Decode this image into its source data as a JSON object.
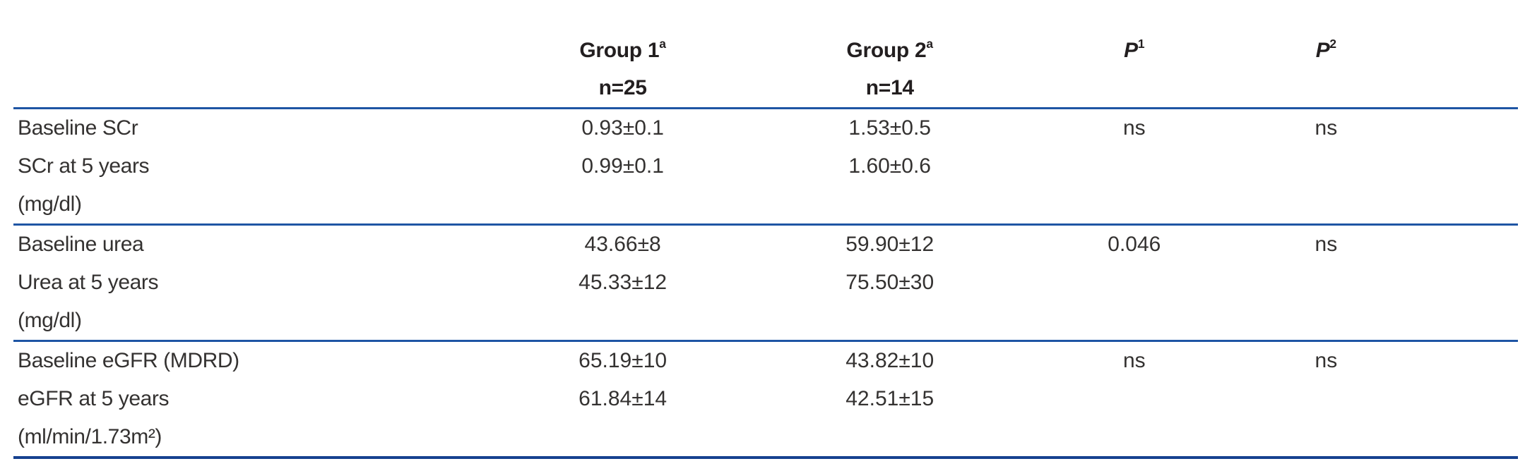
{
  "table": {
    "header": {
      "group1": {
        "title": "Group 1",
        "sup": "a",
        "subtitle": "n=25"
      },
      "group2": {
        "title": "Group 2",
        "sup": "a",
        "subtitle": "n=14"
      },
      "p1": {
        "title": "P",
        "sup": "1"
      },
      "p2": {
        "title": "P",
        "sup": "2"
      }
    },
    "sections": [
      {
        "rows": [
          {
            "label": "Baseline SCr",
            "group1": "0.93±0.1",
            "group2": "1.53±0.5",
            "p1": "ns",
            "p2": "ns"
          },
          {
            "label": "SCr at 5 years",
            "group1": "0.99±0.1",
            "group2": "1.60±0.6",
            "p1": "",
            "p2": ""
          },
          {
            "label": "(mg/dl)",
            "group1": "",
            "group2": "",
            "p1": "",
            "p2": ""
          }
        ]
      },
      {
        "rows": [
          {
            "label": "Baseline urea",
            "group1": "43.66±8",
            "group2": "59.90±12",
            "p1": "0.046",
            "p2": "ns"
          },
          {
            "label": "Urea at 5 years",
            "group1": "45.33±12",
            "group2": "75.50±30",
            "p1": "",
            "p2": ""
          },
          {
            "label": "(mg/dl)",
            "group1": "",
            "group2": "",
            "p1": "",
            "p2": ""
          }
        ]
      },
      {
        "rows": [
          {
            "label": "Baseline eGFR (MDRD)",
            "group1": "65.19±10",
            "group2": "43.82±10",
            "p1": "ns",
            "p2": "ns"
          },
          {
            "label": "eGFR at 5 years",
            "group1": "61.84±14",
            "group2": "42.51±15",
            "p1": "",
            "p2": ""
          },
          {
            "label": "(ml/min/1.73m²)",
            "group1": "",
            "group2": "",
            "p1": "",
            "p2": ""
          }
        ]
      }
    ],
    "colors": {
      "rule_blue": "#1e55a4",
      "rule_bottom_blue": "#16418f",
      "text": "#2e2d2c"
    }
  }
}
